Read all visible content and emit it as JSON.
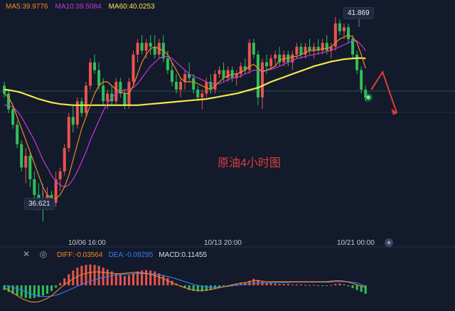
{
  "legend": {
    "ma5": "MA5:39.9776",
    "ma10": "MA10:39.5084",
    "ma60": "MA60:40.0253"
  },
  "macd_legend": {
    "diff": "DIFF:-0.03564",
    "dea": "DEA:-0.09295",
    "macd": "MACD:0.11455"
  },
  "annotation": "原油4小时图",
  "price_high_label": "41.869",
  "price_low_label": "36.621",
  "time_labels": [
    "10/06 16:00",
    "10/13 20:00",
    "10/21 00:00"
  ],
  "colors": {
    "up": "#e8544e",
    "down": "#2fbf5a",
    "ma5": "#f08a24",
    "ma10": "#c03ad8",
    "ma60": "#f2e64a",
    "diff": "#f08a24",
    "dea": "#3a7bf0",
    "annotation": "#e03c3c",
    "background": "#131a2b"
  },
  "icons": {
    "close": "close-icon",
    "settings": "settings-icon",
    "scroll": "scroll-handle-icon"
  },
  "chart_data": {
    "type": "candlestick",
    "title": "原油4小时图",
    "ylim": [
      36.2,
      42.3
    ],
    "candles": [
      [
        40.1,
        40.2,
        39.8,
        39.9
      ],
      [
        39.9,
        40.0,
        39.4,
        39.5
      ],
      [
        39.5,
        39.6,
        39.0,
        39.1
      ],
      [
        39.1,
        39.2,
        38.5,
        38.6
      ],
      [
        38.6,
        38.7,
        37.9,
        38.0
      ],
      [
        38.0,
        38.5,
        37.6,
        38.3
      ],
      [
        38.3,
        38.4,
        37.5,
        37.7
      ],
      [
        37.7,
        37.9,
        37.1,
        37.3
      ],
      [
        37.3,
        37.6,
        36.9,
        37.1
      ],
      [
        37.1,
        37.4,
        36.62,
        37.0
      ],
      [
        37.0,
        37.5,
        36.9,
        37.3
      ],
      [
        37.3,
        37.4,
        37.0,
        37.1
      ],
      [
        37.1,
        37.9,
        37.0,
        37.7
      ],
      [
        37.7,
        38.0,
        37.4,
        37.9
      ],
      [
        37.9,
        38.6,
        37.8,
        38.5
      ],
      [
        38.5,
        39.4,
        38.4,
        39.3
      ],
      [
        39.3,
        39.6,
        38.9,
        39.1
      ],
      [
        39.1,
        39.8,
        39.0,
        39.7
      ],
      [
        39.7,
        39.8,
        39.3,
        39.4
      ],
      [
        39.4,
        40.2,
        39.3,
        40.1
      ],
      [
        40.1,
        40.8,
        40.0,
        40.7
      ],
      [
        40.7,
        40.9,
        40.4,
        40.5
      ],
      [
        40.5,
        40.7,
        40.0,
        40.1
      ],
      [
        40.1,
        40.3,
        39.6,
        39.7
      ],
      [
        39.7,
        40.0,
        39.5,
        39.9
      ],
      [
        39.9,
        40.1,
        39.6,
        39.7
      ],
      [
        39.7,
        40.3,
        39.6,
        40.2
      ],
      [
        40.2,
        40.3,
        39.8,
        39.9
      ],
      [
        39.9,
        40.0,
        39.5,
        39.6
      ],
      [
        39.6,
        40.3,
        39.5,
        40.2
      ],
      [
        40.2,
        41.0,
        40.1,
        40.9
      ],
      [
        40.9,
        41.3,
        40.7,
        41.2
      ],
      [
        41.2,
        41.4,
        40.9,
        41.0
      ],
      [
        41.0,
        41.3,
        40.8,
        41.2
      ],
      [
        41.2,
        41.4,
        40.9,
        41.1
      ],
      [
        41.1,
        41.4,
        40.8,
        40.9
      ],
      [
        40.9,
        41.3,
        40.8,
        41.2
      ],
      [
        41.2,
        41.4,
        40.7,
        40.8
      ],
      [
        40.8,
        41.0,
        40.4,
        40.5
      ],
      [
        40.5,
        40.7,
        40.1,
        40.2
      ],
      [
        40.2,
        40.4,
        39.9,
        40.0
      ],
      [
        40.0,
        40.3,
        39.8,
        40.2
      ],
      [
        40.2,
        40.5,
        40.0,
        40.4
      ],
      [
        40.4,
        40.7,
        40.2,
        40.3
      ],
      [
        40.3,
        40.4,
        39.9,
        40.0
      ],
      [
        40.0,
        40.1,
        39.7,
        39.8
      ],
      [
        39.8,
        40.0,
        39.5,
        39.9
      ],
      [
        39.9,
        40.3,
        39.8,
        40.2
      ],
      [
        40.2,
        40.4,
        39.9,
        40.0
      ],
      [
        40.0,
        40.5,
        39.9,
        40.4
      ],
      [
        40.4,
        40.6,
        40.3,
        40.5
      ],
      [
        40.5,
        40.7,
        40.2,
        40.3
      ],
      [
        40.3,
        40.6,
        40.2,
        40.5
      ],
      [
        40.5,
        40.6,
        40.2,
        40.3
      ],
      [
        40.3,
        40.5,
        40.1,
        40.4
      ],
      [
        40.4,
        40.7,
        40.3,
        40.6
      ],
      [
        40.6,
        40.8,
        40.4,
        40.5
      ],
      [
        40.5,
        41.3,
        40.4,
        41.2
      ],
      [
        41.2,
        41.3,
        40.8,
        40.9
      ],
      [
        40.9,
        41.0,
        39.6,
        39.8
      ],
      [
        39.8,
        40.8,
        39.5,
        40.7
      ],
      [
        40.7,
        40.9,
        40.4,
        40.6
      ],
      [
        40.6,
        40.9,
        40.5,
        40.8
      ],
      [
        40.8,
        41.0,
        40.6,
        40.9
      ],
      [
        40.9,
        41.1,
        40.6,
        40.7
      ],
      [
        40.7,
        41.0,
        40.6,
        40.9
      ],
      [
        40.9,
        41.0,
        40.6,
        40.7
      ],
      [
        40.7,
        41.0,
        40.5,
        40.9
      ],
      [
        40.9,
        41.2,
        40.8,
        41.1
      ],
      [
        41.1,
        41.2,
        40.8,
        40.9
      ],
      [
        40.9,
        41.2,
        40.8,
        41.1
      ],
      [
        41.1,
        41.3,
        40.9,
        41.0
      ],
      [
        41.0,
        41.2,
        40.8,
        41.1
      ],
      [
        41.1,
        41.3,
        40.9,
        41.0
      ],
      [
        41.0,
        41.3,
        40.9,
        41.2
      ],
      [
        41.2,
        41.4,
        40.9,
        41.0
      ],
      [
        41.0,
        41.2,
        40.8,
        41.1
      ],
      [
        41.1,
        41.87,
        41.0,
        41.7
      ],
      [
        41.7,
        41.8,
        41.4,
        41.5
      ],
      [
        41.5,
        41.7,
        41.3,
        41.6
      ],
      [
        41.6,
        41.7,
        41.2,
        41.3
      ],
      [
        41.3,
        41.4,
        40.8,
        40.9
      ],
      [
        40.9,
        41.0,
        40.4,
        40.5
      ],
      [
        40.5,
        40.6,
        39.9,
        40.0
      ],
      [
        40.0,
        40.1,
        39.7,
        39.8
      ]
    ],
    "ma5": [
      39.9,
      39.8,
      39.6,
      39.3,
      39.0,
      38.7,
      38.4,
      38.1,
      37.8,
      37.5,
      37.3,
      37.2,
      37.2,
      37.3,
      37.5,
      37.8,
      38.2,
      38.6,
      39.0,
      39.3,
      39.6,
      39.9,
      40.1,
      40.2,
      40.2,
      40.1,
      40.0,
      39.95,
      39.9,
      39.9,
      40.1,
      40.4,
      40.7,
      40.9,
      41.05,
      41.1,
      41.05,
      41.0,
      40.9,
      40.7,
      40.5,
      40.3,
      40.2,
      40.2,
      40.2,
      40.15,
      40.1,
      40.05,
      40.0,
      40.1,
      40.2,
      40.3,
      40.35,
      40.4,
      40.4,
      40.45,
      40.5,
      40.6,
      40.65,
      40.55,
      40.45,
      40.5,
      40.55,
      40.6,
      40.75,
      40.8,
      40.8,
      40.85,
      40.85,
      40.9,
      40.95,
      41.0,
      41.0,
      41.02,
      41.05,
      41.05,
      41.1,
      41.2,
      41.3,
      41.35,
      41.4,
      41.35,
      41.2,
      40.9,
      40.55
    ],
    "ma10": [
      39.6,
      39.6,
      39.55,
      39.45,
      39.3,
      39.1,
      38.9,
      38.7,
      38.45,
      38.2,
      38.0,
      37.8,
      37.65,
      37.55,
      37.5,
      37.55,
      37.7,
      37.9,
      38.15,
      38.4,
      38.7,
      38.95,
      39.2,
      39.45,
      39.65,
      39.8,
      39.9,
      39.95,
      40.0,
      40.0,
      40.05,
      40.15,
      40.3,
      40.45,
      40.6,
      40.7,
      40.8,
      40.85,
      40.85,
      40.8,
      40.7,
      40.6,
      40.5,
      40.4,
      40.35,
      40.3,
      40.25,
      40.2,
      40.15,
      40.15,
      40.15,
      40.2,
      40.25,
      40.3,
      40.3,
      40.35,
      40.4,
      40.45,
      40.5,
      40.5,
      40.5,
      40.5,
      40.52,
      40.55,
      40.6,
      40.65,
      40.7,
      40.75,
      40.8,
      40.82,
      40.85,
      40.88,
      40.9,
      40.92,
      40.95,
      40.98,
      41.0,
      41.05,
      41.1,
      41.15,
      41.2,
      41.25,
      41.25,
      41.15,
      41.0
    ],
    "ma60": [
      40.0,
      39.99,
      39.97,
      39.95,
      39.92,
      39.88,
      39.84,
      39.8,
      39.76,
      39.73,
      39.7,
      39.67,
      39.65,
      39.63,
      39.62,
      39.61,
      39.6,
      39.6,
      39.6,
      39.6,
      39.6,
      39.6,
      39.6,
      39.6,
      39.6,
      39.6,
      39.6,
      39.6,
      39.6,
      39.6,
      39.6,
      39.6,
      39.61,
      39.62,
      39.63,
      39.64,
      39.65,
      39.66,
      39.67,
      39.68,
      39.69,
      39.7,
      39.71,
      39.72,
      39.73,
      39.74,
      39.75,
      39.76,
      39.78,
      39.8,
      39.82,
      39.84,
      39.86,
      39.88,
      39.9,
      39.93,
      39.96,
      39.99,
      40.02,
      40.05,
      40.1,
      40.15,
      40.2,
      40.24,
      40.28,
      40.32,
      40.36,
      40.4,
      40.44,
      40.48,
      40.52,
      40.56,
      40.6,
      40.63,
      40.66,
      40.69,
      40.72,
      40.74,
      40.76,
      40.78,
      40.79,
      40.8,
      40.81,
      40.81,
      40.8
    ],
    "macd": {
      "ylim": [
        -0.55,
        0.55
      ],
      "hist": [
        -0.1,
        -0.14,
        -0.18,
        -0.22,
        -0.25,
        -0.27,
        -0.28,
        -0.27,
        -0.25,
        -0.22,
        -0.18,
        -0.12,
        -0.05,
        0.05,
        0.15,
        0.24,
        0.32,
        0.38,
        0.42,
        0.44,
        0.45,
        0.44,
        0.42,
        0.38,
        0.34,
        0.3,
        0.26,
        0.22,
        0.2,
        0.22,
        0.26,
        0.3,
        0.32,
        0.33,
        0.32,
        0.3,
        0.26,
        0.22,
        0.16,
        0.1,
        0.04,
        -0.02,
        -0.06,
        -0.1,
        -0.12,
        -0.13,
        -0.13,
        -0.12,
        -0.1,
        -0.07,
        -0.04,
        -0.02,
        0.0,
        0.02,
        0.04,
        0.05,
        0.06,
        0.1,
        0.14,
        0.12,
        0.08,
        0.06,
        0.05,
        0.04,
        0.03,
        0.03,
        0.03,
        0.02,
        0.02,
        0.02,
        0.01,
        0.01,
        0.01,
        0.0,
        -0.01,
        0.0,
        0.01,
        0.03,
        0.04,
        0.02,
        -0.02,
        -0.06,
        -0.1,
        -0.14,
        -0.18
      ],
      "diff": [
        -0.05,
        -0.1,
        -0.16,
        -0.22,
        -0.28,
        -0.32,
        -0.35,
        -0.36,
        -0.35,
        -0.32,
        -0.28,
        -0.22,
        -0.14,
        -0.06,
        0.02,
        0.08,
        0.14,
        0.19,
        0.23,
        0.26,
        0.28,
        0.29,
        0.29,
        0.28,
        0.27,
        0.26,
        0.25,
        0.25,
        0.26,
        0.27,
        0.28,
        0.28,
        0.27,
        0.26,
        0.24,
        0.21,
        0.18,
        0.14,
        0.1,
        0.06,
        0.02,
        -0.02,
        -0.05,
        -0.08,
        -0.1,
        -0.11,
        -0.11,
        -0.1,
        -0.09,
        -0.07,
        -0.05,
        -0.03,
        -0.01,
        0.01,
        0.03,
        0.05,
        0.06,
        0.08,
        0.1,
        0.1,
        0.09,
        0.08,
        0.08,
        0.08,
        0.08,
        0.08,
        0.08,
        0.08,
        0.08,
        0.08,
        0.08,
        0.08,
        0.08,
        0.08,
        0.08,
        0.08,
        0.09,
        0.1,
        0.1,
        0.09,
        0.07,
        0.04,
        0.01,
        -0.02,
        -0.04
      ],
      "dea": [
        0.0,
        -0.02,
        -0.04,
        -0.07,
        -0.1,
        -0.14,
        -0.18,
        -0.21,
        -0.23,
        -0.24,
        -0.24,
        -0.23,
        -0.21,
        -0.18,
        -0.14,
        -0.1,
        -0.06,
        -0.02,
        0.02,
        0.06,
        0.09,
        0.12,
        0.15,
        0.17,
        0.19,
        0.21,
        0.22,
        0.23,
        0.24,
        0.24,
        0.25,
        0.25,
        0.25,
        0.25,
        0.25,
        0.24,
        0.23,
        0.21,
        0.19,
        0.17,
        0.14,
        0.11,
        0.08,
        0.05,
        0.02,
        0.0,
        -0.02,
        -0.03,
        -0.04,
        -0.04,
        -0.04,
        -0.03,
        -0.02,
        -0.01,
        0.0,
        0.01,
        0.02,
        0.03,
        0.04,
        0.05,
        0.05,
        0.05,
        0.06,
        0.06,
        0.06,
        0.06,
        0.06,
        0.07,
        0.07,
        0.07,
        0.07,
        0.07,
        0.07,
        0.07,
        0.07,
        0.07,
        0.07,
        0.08,
        0.08,
        0.08,
        0.08,
        0.07,
        0.05,
        0.02,
        -0.01
      ]
    },
    "forecast": [
      {
        "from": 40.0,
        "to": 40.45
      },
      {
        "from": 40.45,
        "to": 39.4
      }
    ]
  }
}
